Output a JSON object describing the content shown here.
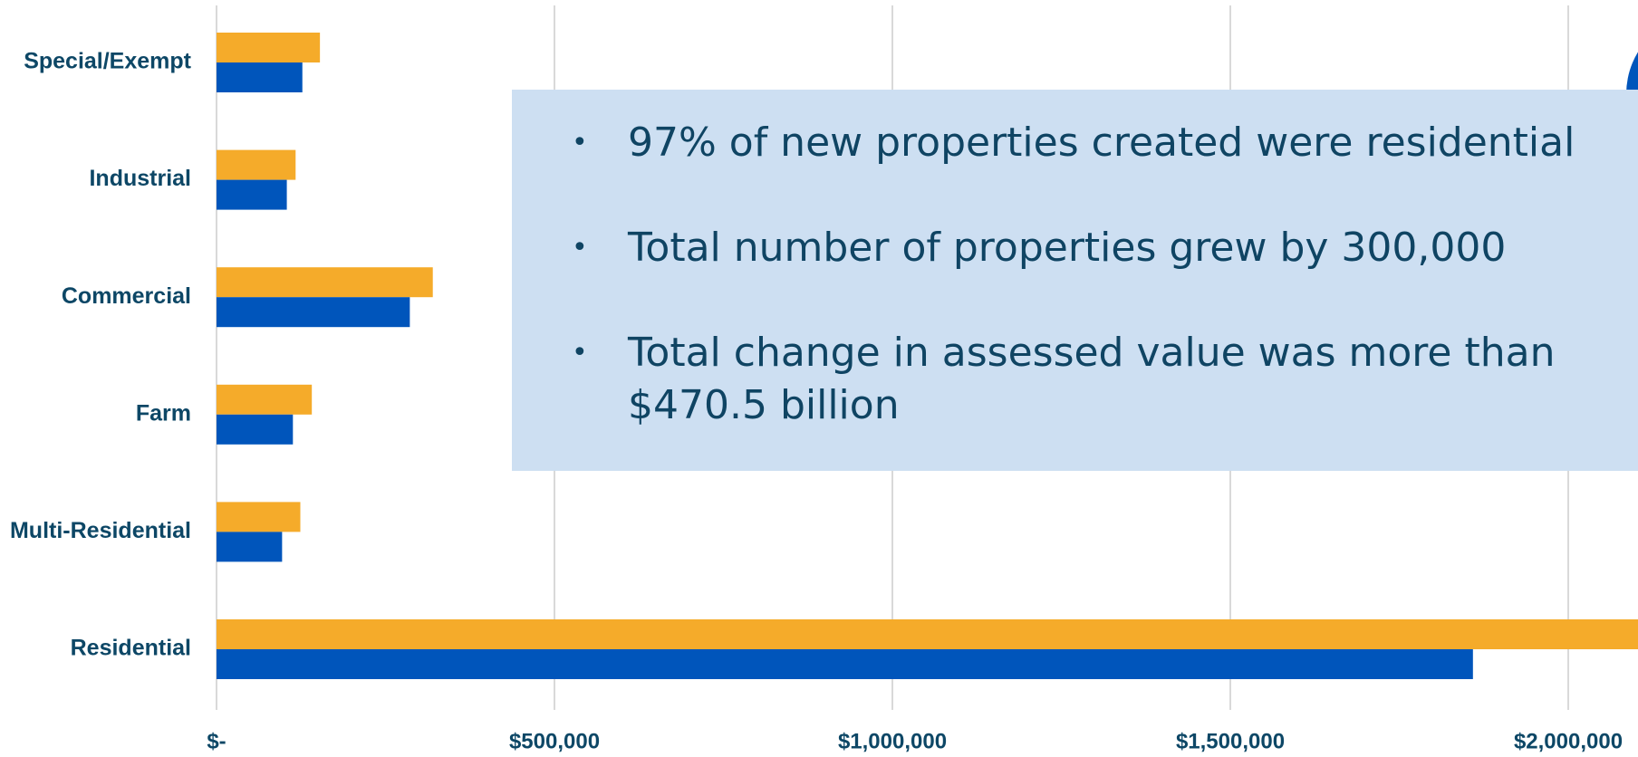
{
  "chart_data": {
    "type": "bar",
    "orientation": "horizontal",
    "categories": [
      "Special/Exempt",
      "Industrial",
      "Commercial",
      "Farm",
      "Multi-Residential",
      "Residential"
    ],
    "series": [
      {
        "color": "#f5ab2a",
        "values": [
          153000,
          117000,
          320000,
          141000,
          124000,
          2150000
        ]
      },
      {
        "color": "#0055bb",
        "values": [
          127000,
          104000,
          286000,
          113000,
          97000,
          1859000
        ]
      }
    ],
    "xlim": [
      0,
      2500000
    ],
    "xticks": [
      {
        "value": 0,
        "label": "$-"
      },
      {
        "value": 500000,
        "label": "$500,000"
      },
      {
        "value": 1000000,
        "label": "$1,000,000"
      },
      {
        "value": 1500000,
        "label": "$1,500,000"
      },
      {
        "value": 2000000,
        "label": "$2,000,000"
      }
    ],
    "grid": true,
    "annotations": [
      "97% of new properties created were residential",
      "Total number of properties grew by 300,000",
      "Total change in assessed value was more than $470.5 billion"
    ]
  }
}
